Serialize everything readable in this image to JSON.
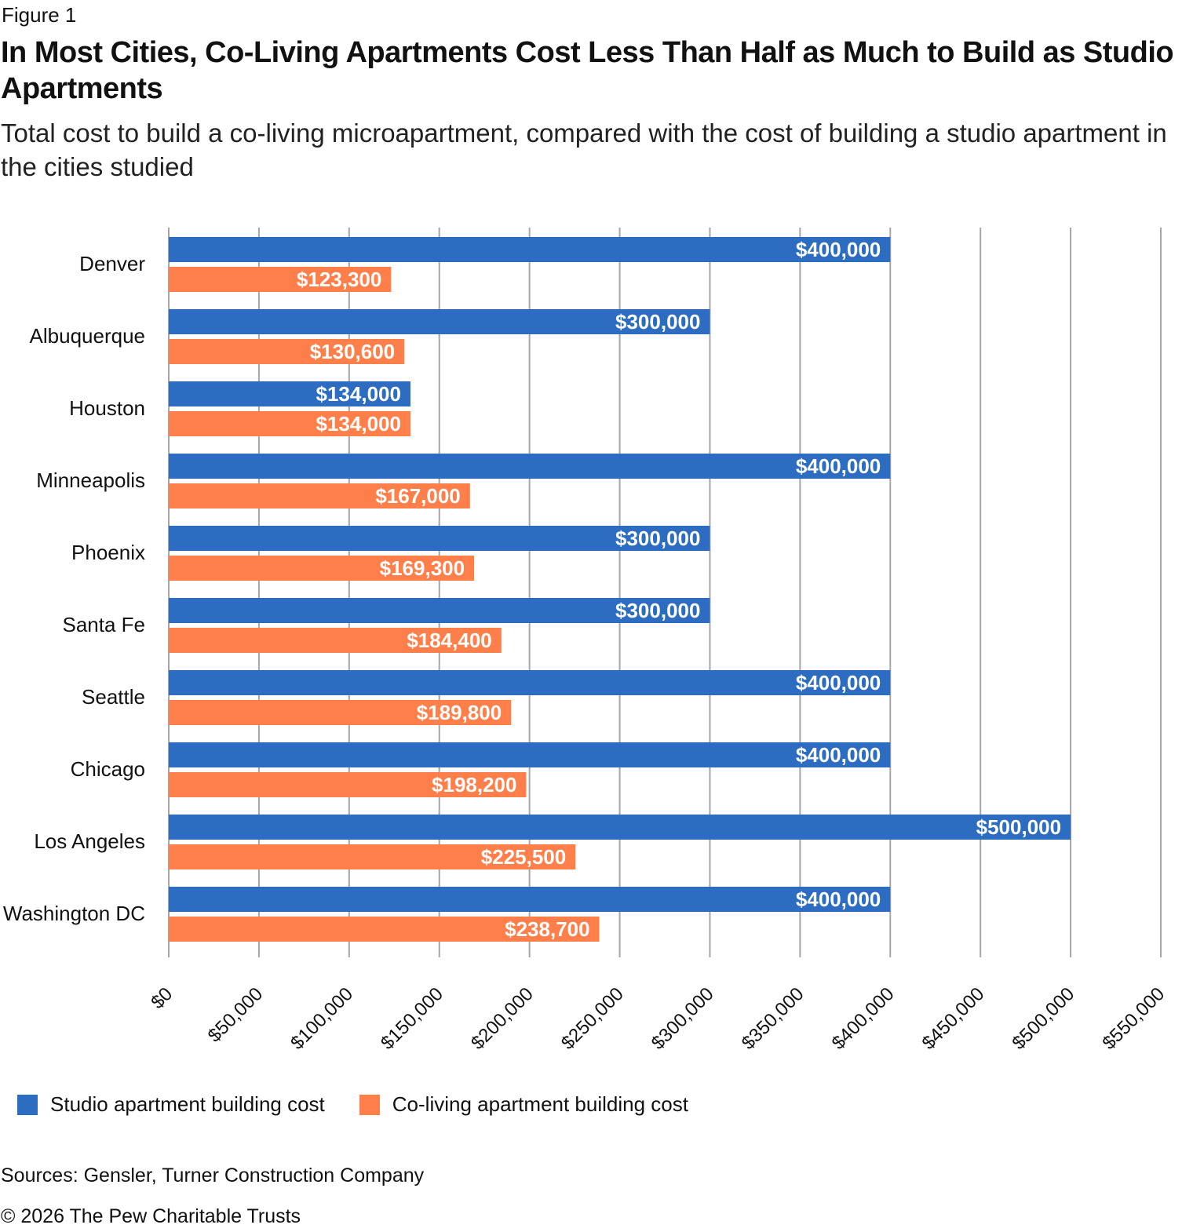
{
  "figure_label": "Figure 1",
  "title": "In Most Cities, Co-Living Apartments Cost Less Than Half as Much to Build as Studio Apartments",
  "subtitle": "Total cost to build a co-living microapartment, compared with the cost of building a studio apartment in the cities studied",
  "sources": "Sources: Gensler, Turner Construction Company",
  "copyright": "© 2026 The Pew Charitable Trusts",
  "chart_data": {
    "type": "bar",
    "orientation": "horizontal",
    "title": "In Most Cities, Co-Living Apartments Cost Less Than Half as Much to Build as Studio Apartments",
    "subtitle": "Total cost to build a co-living microapartment, compared with the cost of building a studio apartment in the cities studied",
    "xlabel": "",
    "ylabel": "",
    "categories": [
      "Denver",
      "Albuquerque",
      "Houston",
      "Minneapolis",
      "Phoenix",
      "Santa Fe",
      "Seattle",
      "Chicago",
      "Los Angeles",
      "Washington DC"
    ],
    "series": [
      {
        "name": "Studio apartment building cost",
        "color": "#2c6dc2",
        "values": [
          400000,
          300000,
          134000,
          400000,
          300000,
          300000,
          400000,
          400000,
          500000,
          400000
        ],
        "labels": [
          "$400,000",
          "$300,000",
          "$134,000",
          "$400,000",
          "$300,000",
          "$300,000",
          "$400,000",
          "$400,000",
          "$500,000",
          "$400,000"
        ]
      },
      {
        "name": "Co-living apartment building cost",
        "color": "#ff7f4a",
        "values": [
          123300,
          130600,
          134000,
          167000,
          169300,
          184400,
          189800,
          198200,
          225500,
          238700
        ],
        "labels": [
          "$123,300",
          "$130,600",
          "$134,000",
          "$167,000",
          "$169,300",
          "$184,400",
          "$189,800",
          "$198,200",
          "$225,500",
          "$238,700"
        ]
      }
    ],
    "xlim": [
      0,
      550000
    ],
    "x_ticks": [
      0,
      50000,
      100000,
      150000,
      200000,
      250000,
      300000,
      350000,
      400000,
      450000,
      500000,
      550000
    ],
    "x_tick_labels": [
      "$0",
      "$50,000",
      "$100,000",
      "$150,000",
      "$200,000",
      "$250,000",
      "$300,000",
      "$350,000",
      "$400,000",
      "$450,000",
      "$500,000",
      "$550,000"
    ],
    "grid": true,
    "gridline_color": "#a6a6a6",
    "legend_position": "bottom-left"
  }
}
